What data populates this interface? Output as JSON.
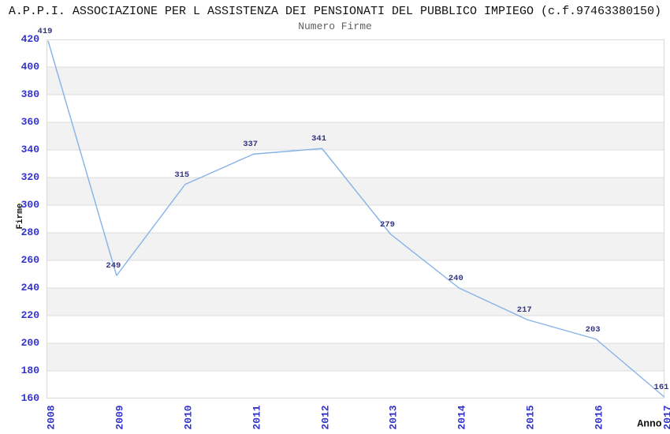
{
  "header": {
    "title": "A.P.P.I. ASSOCIAZIONE PER L ASSISTENZA DEI PENSIONATI DEL PUBBLICO IMPIEGO (c.f.97463380150)",
    "subtitle": "Numero Firme"
  },
  "chart_data": {
    "type": "line",
    "title": "Numero Firme",
    "xlabel": "Anno",
    "ylabel": "Firme",
    "x": [
      "2008",
      "2009",
      "2010",
      "2011",
      "2012",
      "2013",
      "2014",
      "2015",
      "2016",
      "2017"
    ],
    "series": [
      {
        "name": "Numero Firme",
        "values": [
          419,
          249,
          315,
          337,
          341,
          279,
          240,
          217,
          203,
          161
        ]
      }
    ],
    "ylim": [
      160,
      420
    ],
    "ytick_step": 20,
    "yticks": [
      160,
      180,
      200,
      220,
      240,
      260,
      280,
      300,
      320,
      340,
      360,
      380,
      400,
      420
    ],
    "grid": true,
    "banded_background": true,
    "point_labels_visible": true,
    "legend_position": "none",
    "colors": {
      "line": "#85b2e8",
      "tick_label": "#3333cc",
      "data_label": "#333380",
      "band": "#f2f2f2",
      "band_alt": "#ffffff",
      "gridline": "#dcdcdc",
      "border": "#d9d9d9",
      "title": "#111111",
      "subtitle": "#5f5f5f",
      "axis_title": "#111111",
      "background": "#ffffff"
    }
  }
}
